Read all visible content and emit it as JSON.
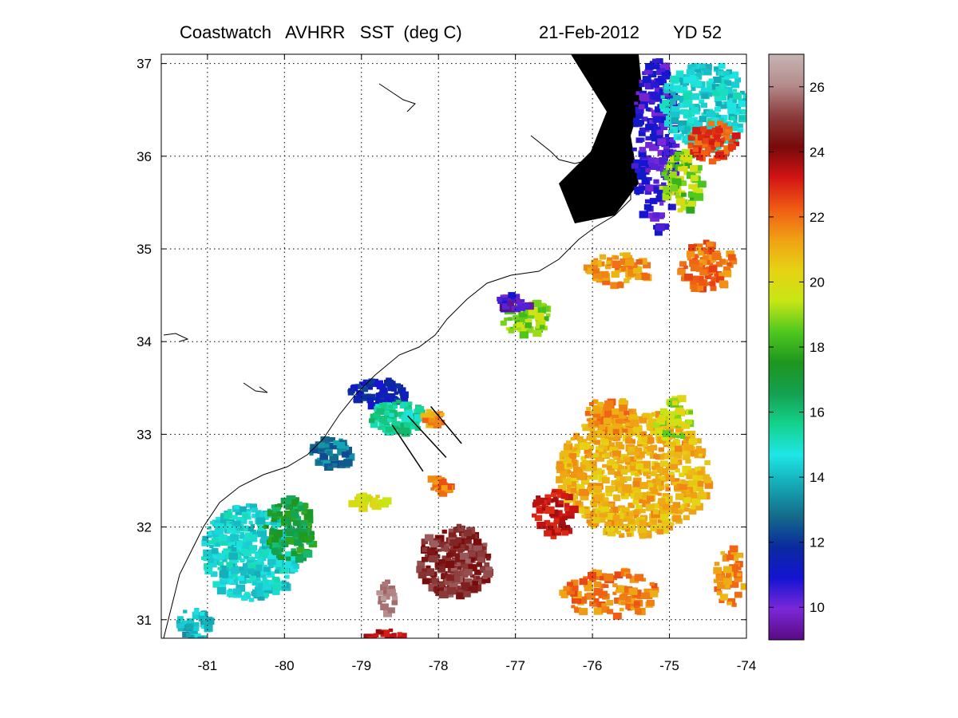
{
  "title": {
    "left": "Coastwatch   AVHRR   SST  (deg C)",
    "date": "21-Feb-2012",
    "yearday": "YD 52"
  },
  "map": {
    "x_ticks": [
      "-81",
      "-80",
      "-79",
      "-78",
      "-77",
      "-76",
      "-75",
      "-74"
    ],
    "y_ticks": [
      "31",
      "32",
      "33",
      "34",
      "35",
      "36",
      "37"
    ],
    "lon_range": [
      -81.6,
      -74
    ],
    "lat_range": [
      30.8,
      37.1
    ],
    "grid": "dotted"
  },
  "colorbar": {
    "ticks": [
      "10",
      "12",
      "14",
      "16",
      "18",
      "20",
      "22",
      "24",
      "26"
    ],
    "range": [
      9,
      27
    ],
    "colormap": [
      "#5a0a82",
      "#7a28d8",
      "#1414d2",
      "#0a2a9e",
      "#146a8a",
      "#14a8b4",
      "#1ee6e6",
      "#14d28c",
      "#14a050",
      "#1e961e",
      "#50c81e",
      "#c8e614",
      "#e6d214",
      "#f0a014",
      "#f05a14",
      "#d21414",
      "#780a0a",
      "#8c3c3c",
      "#b48c8c",
      "#c8b4b4"
    ]
  },
  "chart_data": {
    "type": "heatmap",
    "title": "Coastwatch   AVHRR   SST  (deg C)",
    "subtitle": "21-Feb-2012     YD 52",
    "xlabel": "",
    "ylabel": "",
    "xlim": [
      -81.6,
      -74
    ],
    "ylim": [
      30.8,
      37.1
    ],
    "colorbar_range": [
      9,
      27
    ],
    "units": "deg C",
    "transect_lines": [
      {
        "start": [
          -78.6,
          33.1
        ],
        "end": [
          -78.2,
          32.6
        ]
      },
      {
        "start": [
          -78.4,
          33.2
        ],
        "end": [
          -77.9,
          32.75
        ]
      },
      {
        "start": [
          -78.1,
          33.3
        ],
        "end": [
          -77.7,
          32.9
        ]
      }
    ]
  }
}
